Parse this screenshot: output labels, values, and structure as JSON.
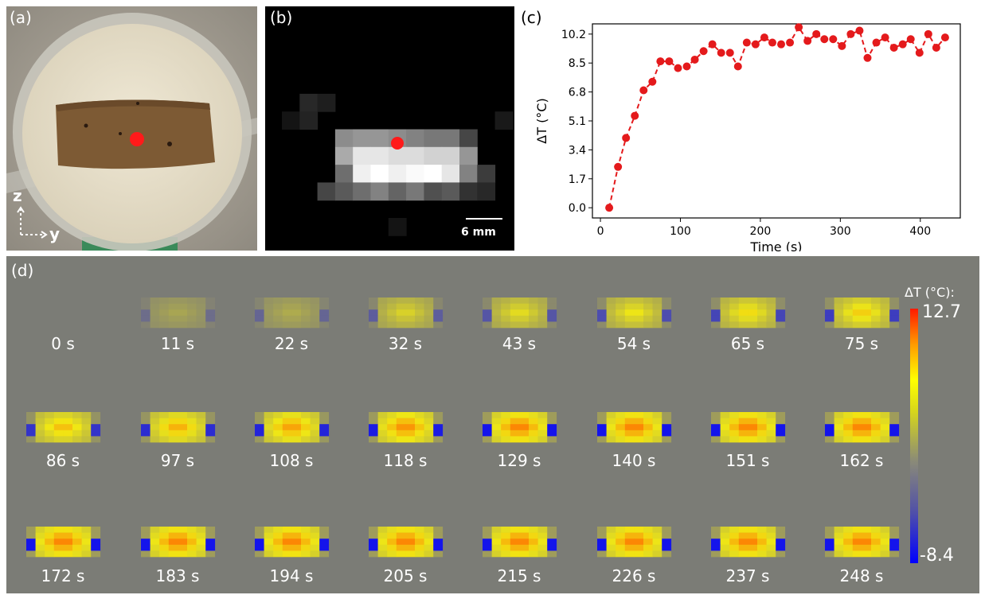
{
  "panels": {
    "a": {
      "label": "(a)",
      "axis_z": "z",
      "axis_y": "y"
    },
    "b": {
      "label": "(b)",
      "scalebar": "6 mm"
    },
    "c": {
      "label": "(c)"
    },
    "d": {
      "label": "(d)",
      "colorbar_title": "ΔT (°C):",
      "colorbar_max": "12.7",
      "colorbar_min": "-8.4",
      "frames": [
        "0 s",
        "11 s",
        "22 s",
        "32 s",
        "43 s",
        "54 s",
        "65 s",
        "75 s",
        "86 s",
        "97 s",
        "108 s",
        "118 s",
        "129 s",
        "140 s",
        "151 s",
        "162 s",
        "172 s",
        "183 s",
        "194 s",
        "205 s",
        "215 s",
        "226 s",
        "237 s",
        "248 s"
      ]
    }
  },
  "colors": {
    "marker": "#e41a1c",
    "panel_d_bg": "#7b7c76"
  },
  "chart_data": {
    "type": "line",
    "xlabel": "Time (s)",
    "ylabel": "ΔT (°C)",
    "xlim": [
      -10,
      450
    ],
    "ylim": [
      -0.6,
      10.8
    ],
    "xticks": [
      0,
      100,
      200,
      300,
      400
    ],
    "yticks": [
      0.0,
      1.7,
      3.4,
      5.1,
      6.8,
      8.5,
      10.2
    ],
    "ytick_labels": [
      "0.0",
      "1.7",
      "3.4",
      "5.1",
      "6.8",
      "8.5",
      "10.2"
    ],
    "series": [
      {
        "x": [
          11,
          22,
          32,
          43,
          54,
          65,
          75,
          86,
          97,
          108,
          118,
          129,
          140,
          151,
          162,
          172,
          183,
          194,
          205,
          215,
          226,
          237,
          248,
          259,
          270,
          280,
          291,
          302,
          313,
          324,
          334,
          345,
          356,
          367,
          378,
          388,
          399,
          410,
          420,
          431
        ],
        "y": [
          0.0,
          2.4,
          4.1,
          5.4,
          6.9,
          7.4,
          8.6,
          8.6,
          8.2,
          8.3,
          8.7,
          9.2,
          9.6,
          9.1,
          9.1,
          8.3,
          9.7,
          9.6,
          10.0,
          9.7,
          9.6,
          9.7,
          10.6,
          9.8,
          10.2,
          9.9,
          9.9,
          9.5,
          10.2,
          10.4,
          8.8,
          9.7,
          10.0,
          9.4,
          9.6,
          9.9,
          9.1,
          10.2,
          9.4,
          10.0
        ]
      }
    ]
  }
}
